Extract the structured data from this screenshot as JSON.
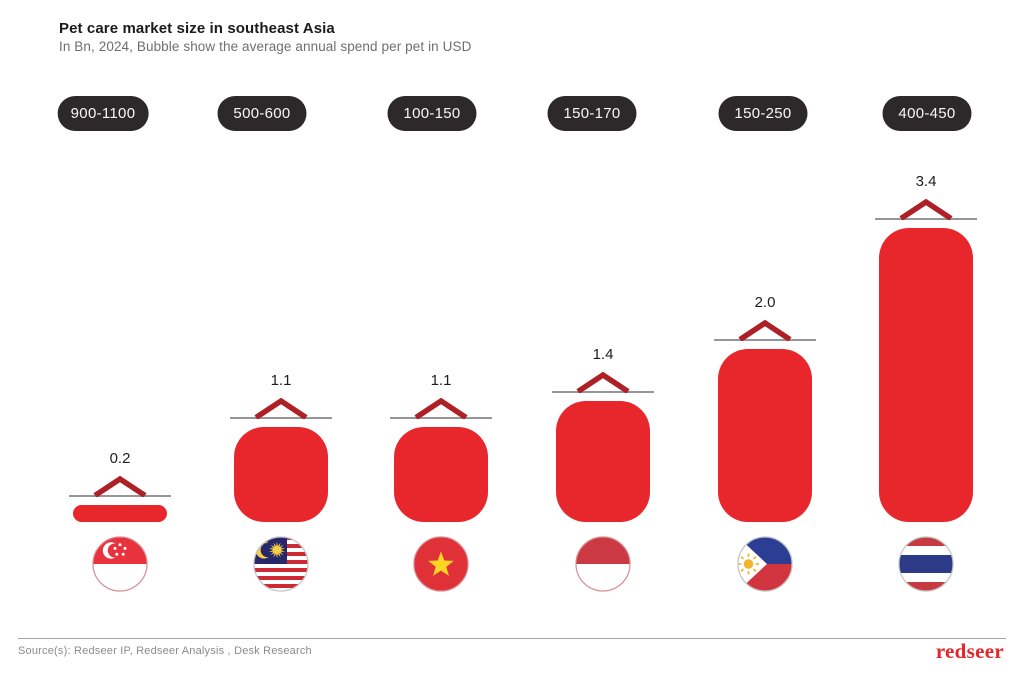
{
  "header": {
    "title": "Pet care market size in southeast Asia",
    "subtitle": "In Bn, 2024, Bubble show the average annual spend per pet in USD"
  },
  "chart_data": {
    "type": "bar",
    "title": "Pet care market size in southeast Asia",
    "subtitle": "In Bn, 2024, Bubble show the average annual spend per pet in USD",
    "unit": "USD Bn",
    "year": "2024",
    "categories": [
      "Singapore",
      "Malaysia",
      "Vietnam",
      "Indonesia",
      "Philippines",
      "Thailand"
    ],
    "flag_icons": [
      "singapore-flag-icon",
      "malaysia-flag-icon",
      "vietnam-flag-icon",
      "indonesia-flag-icon",
      "philippines-flag-icon",
      "thailand-flag-icon"
    ],
    "values": [
      0.2,
      1.1,
      1.1,
      1.4,
      2.0,
      3.4
    ],
    "value_labels": [
      "0.2",
      "1.1",
      "1.1",
      "1.4",
      "2.0",
      "3.4"
    ],
    "avg_annual_spend_per_pet_usd": [
      "900-1100",
      "500-600",
      "100-150",
      "150-170",
      "150-250",
      "400-450"
    ],
    "ylim": [
      0,
      3.6
    ],
    "grid": false,
    "legend": false
  },
  "footer": {
    "source": "Source(s): Redseer IP, Redseer Analysis , Desk Research",
    "logo": "redseer"
  },
  "colors": {
    "bar": "#E8272D",
    "chevron": "#AC2026",
    "marker_line": "#96969A",
    "pill_bg": "#2D292A",
    "pill_text": "#F7F7F7",
    "accent": "#E4252B"
  }
}
